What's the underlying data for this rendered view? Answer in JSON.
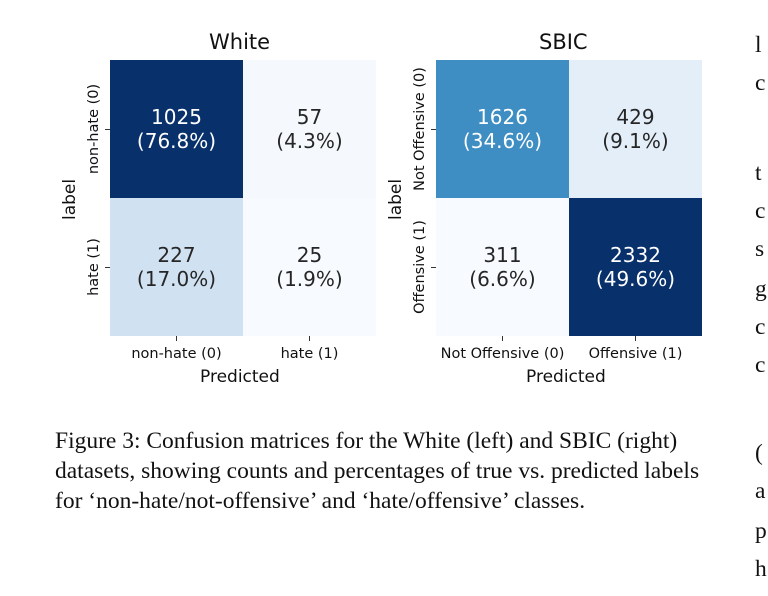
{
  "chart_data": [
    {
      "type": "heatmap",
      "title": "White",
      "xlabel": "Predicted",
      "ylabel": "label",
      "x_ticks": [
        "non-hate (0)",
        "hate (1)"
      ],
      "y_ticks": [
        "non-hate (0)",
        "hate (1)"
      ],
      "cells": [
        {
          "row": 0,
          "col": 0,
          "count": "1025",
          "pct": "(76.8%)",
          "value": 1025,
          "color": "#08306b",
          "text_color": "#ffffff"
        },
        {
          "row": 0,
          "col": 1,
          "count": "57",
          "pct": "(4.3%)",
          "value": 57,
          "color": "#f5f9fe",
          "text_color": "#262626"
        },
        {
          "row": 1,
          "col": 0,
          "count": "227",
          "pct": "(17.0%)",
          "value": 227,
          "color": "#d0e1f2",
          "text_color": "#262626"
        },
        {
          "row": 1,
          "col": 1,
          "count": "25",
          "pct": "(1.9%)",
          "value": 25,
          "color": "#f7fbff",
          "text_color": "#262626"
        }
      ],
      "colormap": "Blues"
    },
    {
      "type": "heatmap",
      "title": "SBIC",
      "xlabel": "Predicted",
      "ylabel": "label",
      "x_ticks": [
        "Not Offensive (0)",
        "Offensive (1)"
      ],
      "y_ticks": [
        "Not Offensive (0)",
        "Offensive (1)"
      ],
      "cells": [
        {
          "row": 0,
          "col": 0,
          "count": "1626",
          "pct": "(34.6%)",
          "value": 1626,
          "color": "#3e8ec4",
          "text_color": "#ffffff"
        },
        {
          "row": 0,
          "col": 1,
          "count": "429",
          "pct": "(9.1%)",
          "value": 429,
          "color": "#e3eef9",
          "text_color": "#262626"
        },
        {
          "row": 1,
          "col": 0,
          "count": "311",
          "pct": "(6.6%)",
          "value": 311,
          "color": "#f7fbff",
          "text_color": "#262626"
        },
        {
          "row": 1,
          "col": 1,
          "count": "2332",
          "pct": "(49.6%)",
          "value": 2332,
          "color": "#08306b",
          "text_color": "#ffffff"
        }
      ],
      "colormap": "Blues"
    }
  ],
  "caption": "Figure 3: Confusion matrices for the White (left) and SBIC (right) datasets, showing counts and percentages of true vs. predicted labels for ‘non-hate/not-offensive’ and ‘hate/offensive’ classes.",
  "side_text": [
    "l",
    "c",
    "t",
    "c",
    "s",
    "g",
    "c",
    "c",
    "(",
    "a",
    "p",
    "h"
  ]
}
